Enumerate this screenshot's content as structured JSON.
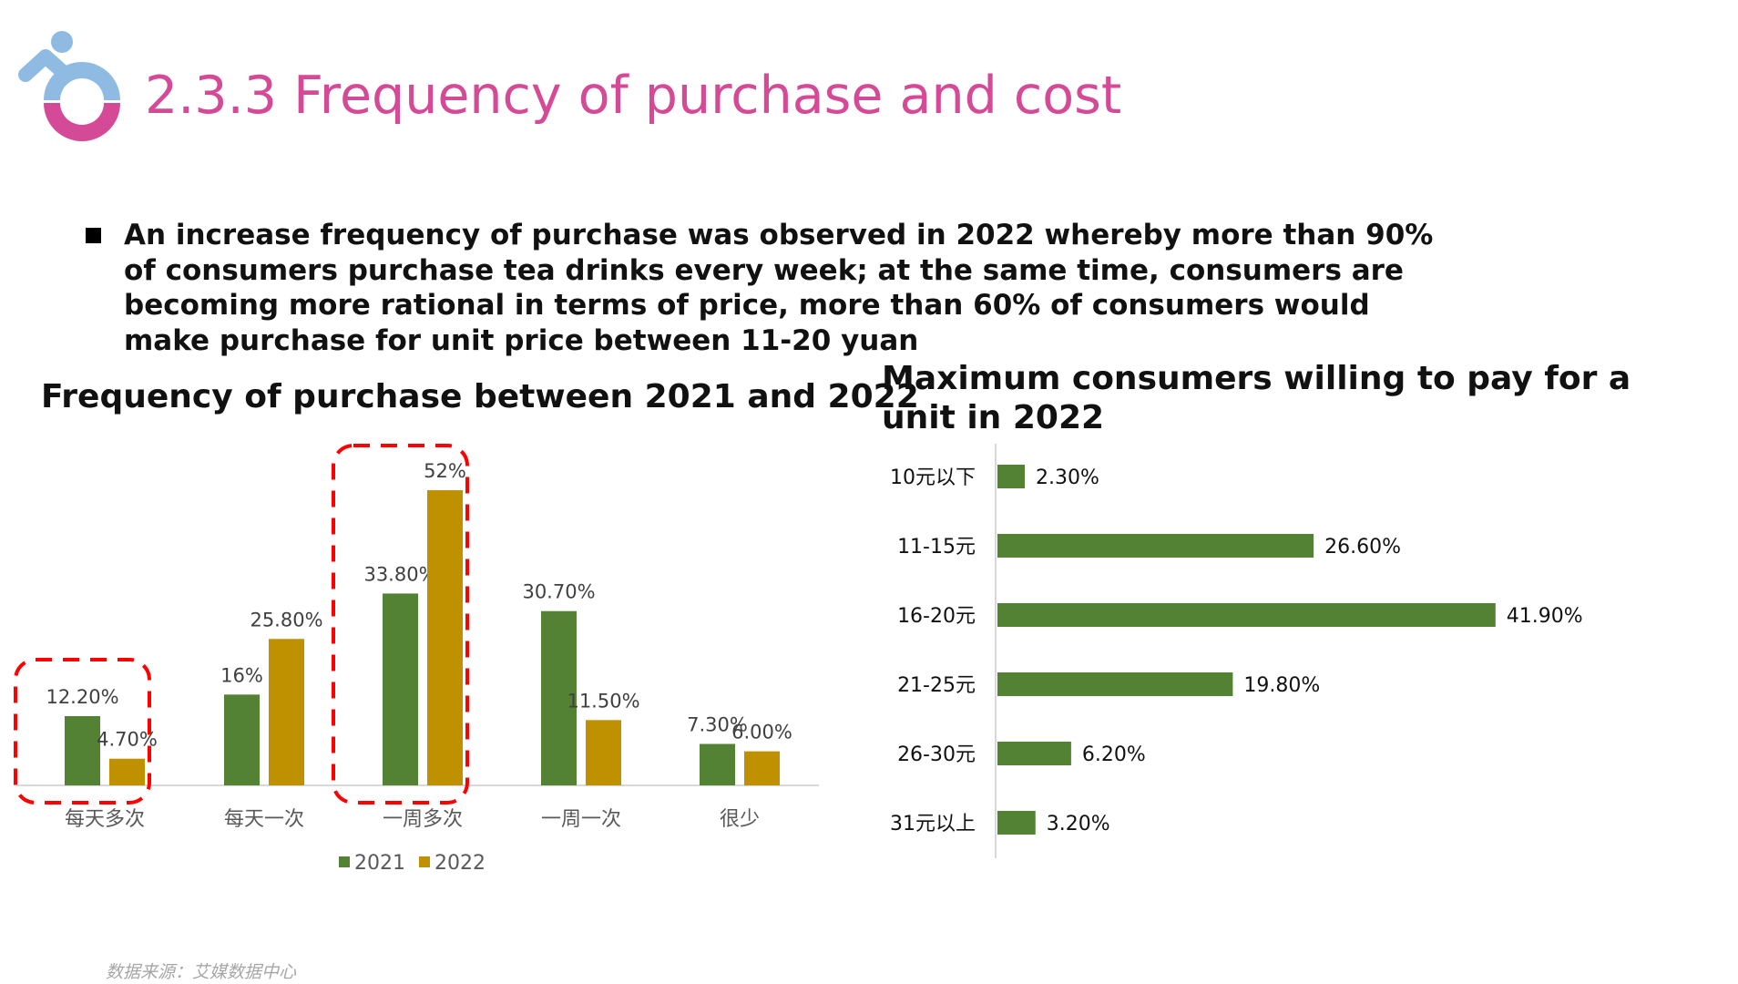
{
  "header": {
    "title": "2.3.3 Frequency of purchase and cost",
    "logo_icon": "person-ring-logo"
  },
  "bullet": {
    "text": "An increase frequency of purchase was observed in 2022 whereby more than 90% of consumers purchase tea drinks every week; at the same time, consumers are becoming more rational in terms of price, more than 60% of consumers would make purchase for unit price between 11-20 yuan"
  },
  "colors": {
    "accent": "#d44a96",
    "logo_blue": "#8fbbe3",
    "series_2021": "#548235",
    "series_2022": "#bf9000",
    "highlight": "#ff0000"
  },
  "chart_data": [
    {
      "type": "bar",
      "title": "Frequency of purchase between 2021 and 2022",
      "categories": [
        "每天多次",
        "每天一次",
        "一周多次",
        "一周一次",
        "很少"
      ],
      "series": [
        {
          "name": "2021",
          "values": [
            12.2,
            16,
            33.8,
            30.7,
            7.3
          ],
          "labels": [
            "12.20%",
            "16%",
            "33.80%",
            "30.70%",
            "7.30%"
          ]
        },
        {
          "name": "2022",
          "values": [
            4.7,
            25.8,
            52,
            11.5,
            6.0
          ],
          "labels": [
            "4.70%",
            "25.80%",
            "52%",
            "11.50%",
            "6.00%"
          ]
        }
      ],
      "legend": "bottom",
      "highlighted_categories": [
        "每天多次",
        "一周多次"
      ],
      "ylim": [
        0,
        55
      ]
    },
    {
      "type": "bar",
      "orientation": "horizontal",
      "title": "Maximum consumers willing to pay for a unit in 2022",
      "categories": [
        "10元以下",
        "11-15元",
        "16-20元",
        "21-25元",
        "26-30元",
        "31元以上"
      ],
      "values": [
        2.3,
        26.6,
        41.9,
        19.8,
        6.2,
        3.2
      ],
      "labels": [
        "2.30%",
        "26.60%",
        "41.90%",
        "19.80%",
        "6.20%",
        "3.20%"
      ]
    }
  ],
  "footer": {
    "source": "数据来源：艾媒数据中心"
  }
}
